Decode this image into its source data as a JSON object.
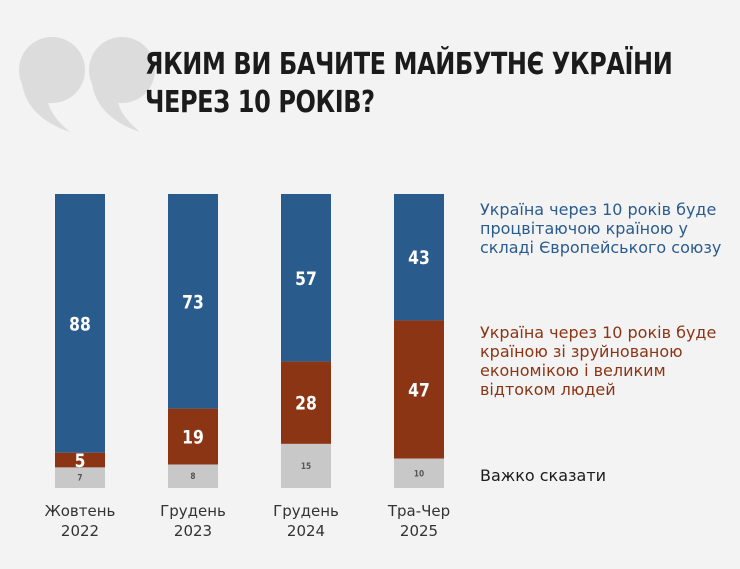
{
  "title": {
    "line1": "ЯКИМ ВИ БАЧИТЕ МАЙБУТНЄ УКРАЇНИ",
    "line2": "ЧЕРЕЗ 10 РОКІВ?"
  },
  "colors": {
    "blue": "#2a5b8d",
    "brown": "#8b3514",
    "gray": "#c8c8c8",
    "quote": "#dcdcdc",
    "background": "#f3f3f3"
  },
  "legend": [
    {
      "label": "Україна через 10 років буде процвітаючою країною у складі Європейського союзу",
      "color": "#2a5b8d"
    },
    {
      "label": "Україна через 10 років буде країною зі зруйнованою економікою і великим відтоком людей",
      "color": "#8b3514"
    },
    {
      "label": "Важко сказати",
      "color": "#1b1b1b"
    }
  ],
  "chart_data": {
    "type": "bar",
    "stacked": true,
    "categories": [
      [
        "Жовтень",
        "2022"
      ],
      [
        "Грудень",
        "2023"
      ],
      [
        "Грудень",
        "2024"
      ],
      [
        "Тра-Чер",
        "2025"
      ]
    ],
    "series": [
      {
        "name": "Україна через 10 років буде процвітаючою країною у складі Європейського союзу",
        "values": [
          88,
          73,
          57,
          43
        ],
        "color": "#2a5b8d"
      },
      {
        "name": "Україна через 10 років буде країною зі зруйнованою економікою і великим відтоком людей",
        "values": [
          5,
          19,
          28,
          47
        ],
        "color": "#8b3514"
      },
      {
        "name": "Важко сказати",
        "values": [
          7,
          8,
          15,
          10
        ],
        "color": "#c8c8c8"
      }
    ],
    "ylim": [
      0,
      100
    ],
    "unit": "%"
  }
}
